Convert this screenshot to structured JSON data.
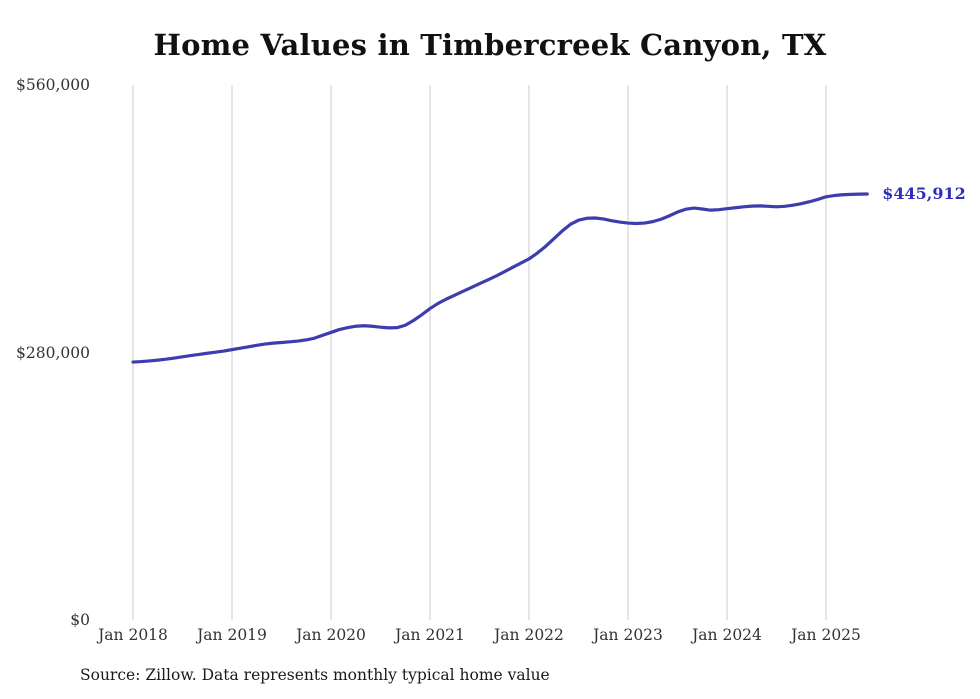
{
  "chart_data": {
    "type": "line",
    "title": "Home Values in Timbercreek Canyon, TX",
    "source_note": "Source: Zillow. Data represents monthly typical home value",
    "end_label": "$445,912",
    "end_label_color": "#2d2dbe",
    "grid": "vertical-only",
    "grid_color": "#cccccc",
    "legend": "none",
    "ylim": [
      0,
      560000
    ],
    "frequency": "monthly",
    "x_start": "Jan 2018",
    "x_ticks": [
      "Jan 2018",
      "Jan 2019",
      "Jan 2020",
      "Jan 2021",
      "Jan 2022",
      "Jan 2023",
      "Jan 2024",
      "Jan 2025"
    ],
    "y_ticks": [
      {
        "value": 560000,
        "label": "$560,000"
      },
      {
        "value": 280000,
        "label": "$280,000"
      },
      {
        "value": 0,
        "label": "$0"
      }
    ],
    "series": [
      {
        "name": "Typical home value",
        "color": "#3d3dae",
        "values": [
          270000,
          270500,
          271200,
          272000,
          273000,
          274200,
          275500,
          276800,
          278000,
          279200,
          280300,
          281500,
          283000,
          284500,
          286000,
          287500,
          288800,
          289800,
          290500,
          291200,
          292000,
          293200,
          295000,
          298000,
          301000,
          304000,
          306000,
          307500,
          308000,
          307500,
          306500,
          305800,
          306000,
          308500,
          313500,
          319500,
          326000,
          331500,
          336000,
          340000,
          344000,
          348000,
          352000,
          356000,
          360000,
          364500,
          369000,
          373500,
          378000,
          384000,
          391000,
          399000,
          407000,
          414000,
          418500,
          420500,
          420800,
          419800,
          418000,
          416500,
          415500,
          415000,
          415500,
          417000,
          419500,
          423000,
          427000,
          430000,
          431200,
          430200,
          429000,
          429500,
          430500,
          431500,
          432500,
          433200,
          433500,
          433000,
          432500,
          433000,
          434200,
          435800,
          437800,
          440200,
          443000,
          444300,
          445100,
          445500,
          445750,
          445912
        ]
      }
    ]
  }
}
